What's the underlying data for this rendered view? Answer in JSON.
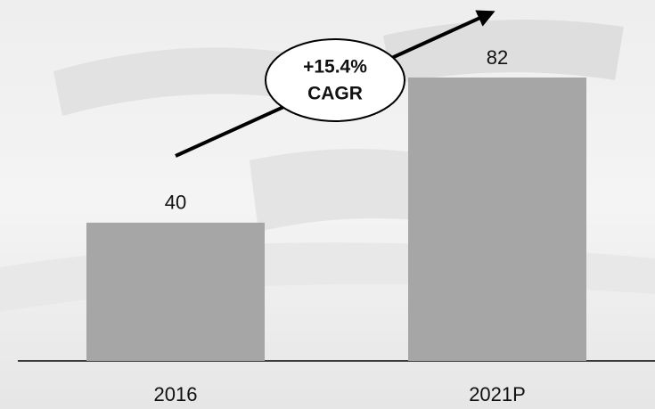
{
  "chart_data": {
    "type": "bar",
    "categories": [
      "2016",
      "2021P"
    ],
    "values": [
      40,
      82
    ],
    "color": "#a6a6a6",
    "annotation": [
      "+15.4%",
      "CAGR"
    ]
  }
}
